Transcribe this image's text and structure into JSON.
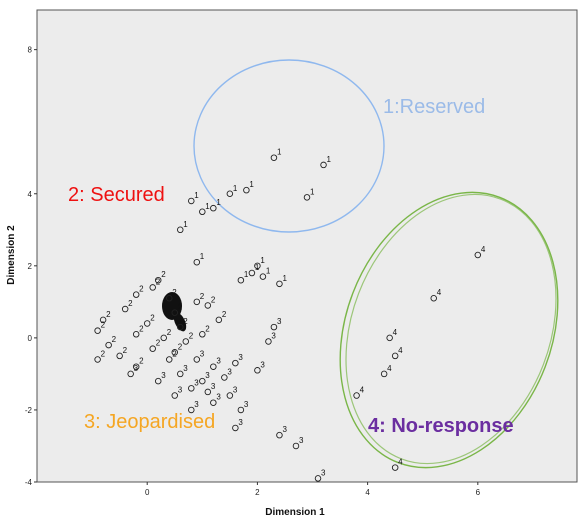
{
  "chart_data": {
    "type": "scatter",
    "xlabel": "Dimension 1",
    "ylabel": "Dimension 2",
    "xlim": [
      -2.0,
      7.8
    ],
    "ylim": [
      -4.0,
      9.1
    ],
    "xticks": [
      0,
      2,
      4,
      6
    ],
    "yticks": [
      -4,
      -2,
      0,
      2,
      4,
      8
    ],
    "xtick_labels": [
      "0",
      "2",
      "4",
      "6"
    ],
    "ytick_labels": [
      "-4",
      "-2",
      "0",
      "2",
      "4",
      "8"
    ],
    "grid": false,
    "series": [
      {
        "label": "1",
        "points": [
          [
            2.3,
            5.0
          ],
          [
            3.2,
            4.8
          ],
          [
            2.9,
            3.9
          ],
          [
            1.8,
            4.1
          ],
          [
            1.5,
            4.0
          ],
          [
            1.2,
            3.6
          ],
          [
            1.0,
            3.5
          ],
          [
            0.6,
            3.0
          ],
          [
            0.8,
            3.8
          ],
          [
            0.9,
            2.1
          ],
          [
            2.0,
            2.0
          ],
          [
            1.9,
            1.8
          ],
          [
            2.1,
            1.7
          ],
          [
            2.4,
            1.5
          ],
          [
            1.7,
            1.6
          ]
        ]
      },
      {
        "label": "2",
        "points": [
          [
            0.2,
            1.6
          ],
          [
            0.1,
            1.4
          ],
          [
            -0.2,
            1.2
          ],
          [
            0.4,
            1.1
          ],
          [
            0.9,
            1.0
          ],
          [
            1.1,
            0.9
          ],
          [
            -0.4,
            0.8
          ],
          [
            0.5,
            0.7
          ],
          [
            1.3,
            0.5
          ],
          [
            -0.8,
            0.5
          ],
          [
            0.0,
            0.4
          ],
          [
            0.6,
            0.3
          ],
          [
            1.0,
            0.1
          ],
          [
            -0.9,
            0.2
          ],
          [
            -0.2,
            0.1
          ],
          [
            0.3,
            0.0
          ],
          [
            0.7,
            -0.1
          ],
          [
            -0.7,
            -0.2
          ],
          [
            0.1,
            -0.3
          ],
          [
            0.5,
            -0.4
          ],
          [
            -0.5,
            -0.5
          ],
          [
            -0.2,
            -0.8
          ],
          [
            0.4,
            -0.6
          ],
          [
            -0.9,
            -0.6
          ]
        ]
      },
      {
        "label": "3",
        "points": [
          [
            0.9,
            -0.6
          ],
          [
            1.2,
            -0.8
          ],
          [
            1.6,
            -0.7
          ],
          [
            0.6,
            -1.0
          ],
          [
            1.0,
            -1.2
          ],
          [
            1.4,
            -1.1
          ],
          [
            0.8,
            -1.4
          ],
          [
            1.1,
            -1.5
          ],
          [
            0.5,
            -1.6
          ],
          [
            1.2,
            -1.8
          ],
          [
            0.8,
            -2.0
          ],
          [
            1.5,
            -1.6
          ],
          [
            1.7,
            -2.0
          ],
          [
            0.2,
            -1.2
          ],
          [
            -0.3,
            -1.0
          ],
          [
            2.2,
            -0.1
          ],
          [
            2.0,
            -0.9
          ],
          [
            2.3,
            0.3
          ],
          [
            1.6,
            -2.5
          ],
          [
            2.4,
            -2.7
          ],
          [
            2.7,
            -3.0
          ],
          [
            3.1,
            -3.9
          ]
        ]
      },
      {
        "label": "4",
        "points": [
          [
            6.0,
            2.3
          ],
          [
            5.2,
            1.1
          ],
          [
            4.4,
            0.0
          ],
          [
            4.5,
            -0.5
          ],
          [
            4.3,
            -1.0
          ],
          [
            3.8,
            -1.6
          ],
          [
            4.5,
            -3.6
          ]
        ]
      }
    ],
    "annotations": [
      {
        "text": "1:Reserved",
        "color": "#9bbbe8"
      },
      {
        "text": "2: Secured",
        "color": "#ee1111"
      },
      {
        "text": "3: Jeopardised",
        "color": "#f5a623"
      },
      {
        "text": "4: No-response",
        "color": "#6b2ea0"
      }
    ],
    "circle_colors": {
      "1": "#8fb8ee",
      "4": "#7ab648"
    },
    "plot_background": "#ececec"
  }
}
